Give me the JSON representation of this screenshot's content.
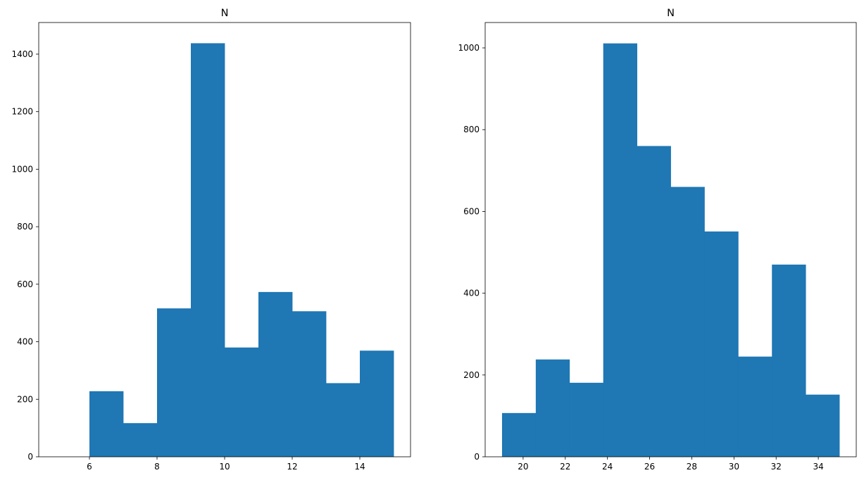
{
  "chart_data": [
    {
      "type": "bar",
      "title": "N",
      "color": "#1f77b4",
      "bins": [
        {
          "x0": 6,
          "x1": 7,
          "count": 228
        },
        {
          "x0": 7,
          "x1": 8,
          "count": 117
        },
        {
          "x0": 8,
          "x1": 9,
          "count": 516
        },
        {
          "x0": 9,
          "x1": 10,
          "count": 1438
        },
        {
          "x0": 10,
          "x1": 11,
          "count": 380
        },
        {
          "x0": 11,
          "x1": 12,
          "count": 573
        },
        {
          "x0": 12,
          "x1": 13,
          "count": 506
        },
        {
          "x0": 13,
          "x1": 14,
          "count": 256
        },
        {
          "x0": 14,
          "x1": 15,
          "count": 369
        }
      ],
      "xlim": [
        4.5,
        15.5
      ],
      "ylim": [
        0,
        1510
      ],
      "xticks": [
        6,
        8,
        10,
        12,
        14
      ],
      "yticks": [
        0,
        200,
        400,
        600,
        800,
        1000,
        1200,
        1400
      ],
      "grid": false
    },
    {
      "type": "bar",
      "title": "N",
      "color": "#1f77b4",
      "bins": [
        {
          "x0": 19.0,
          "x1": 20.6,
          "count": 107
        },
        {
          "x0": 20.6,
          "x1": 22.2,
          "count": 238
        },
        {
          "x0": 22.2,
          "x1": 23.8,
          "count": 181
        },
        {
          "x0": 23.8,
          "x1": 25.4,
          "count": 1011
        },
        {
          "x0": 25.4,
          "x1": 27.0,
          "count": 760
        },
        {
          "x0": 27.0,
          "x1": 28.6,
          "count": 660
        },
        {
          "x0": 28.6,
          "x1": 30.2,
          "count": 551
        },
        {
          "x0": 30.2,
          "x1": 31.8,
          "count": 245
        },
        {
          "x0": 31.8,
          "x1": 33.4,
          "count": 470
        },
        {
          "x0": 33.4,
          "x1": 35.0,
          "count": 152
        }
      ],
      "xlim": [
        18.2,
        35.8
      ],
      "ylim": [
        0,
        1062
      ],
      "xticks": [
        20,
        22,
        24,
        26,
        28,
        30,
        32,
        34
      ],
      "yticks": [
        0,
        200,
        400,
        600,
        800,
        1000
      ],
      "grid": false
    }
  ]
}
